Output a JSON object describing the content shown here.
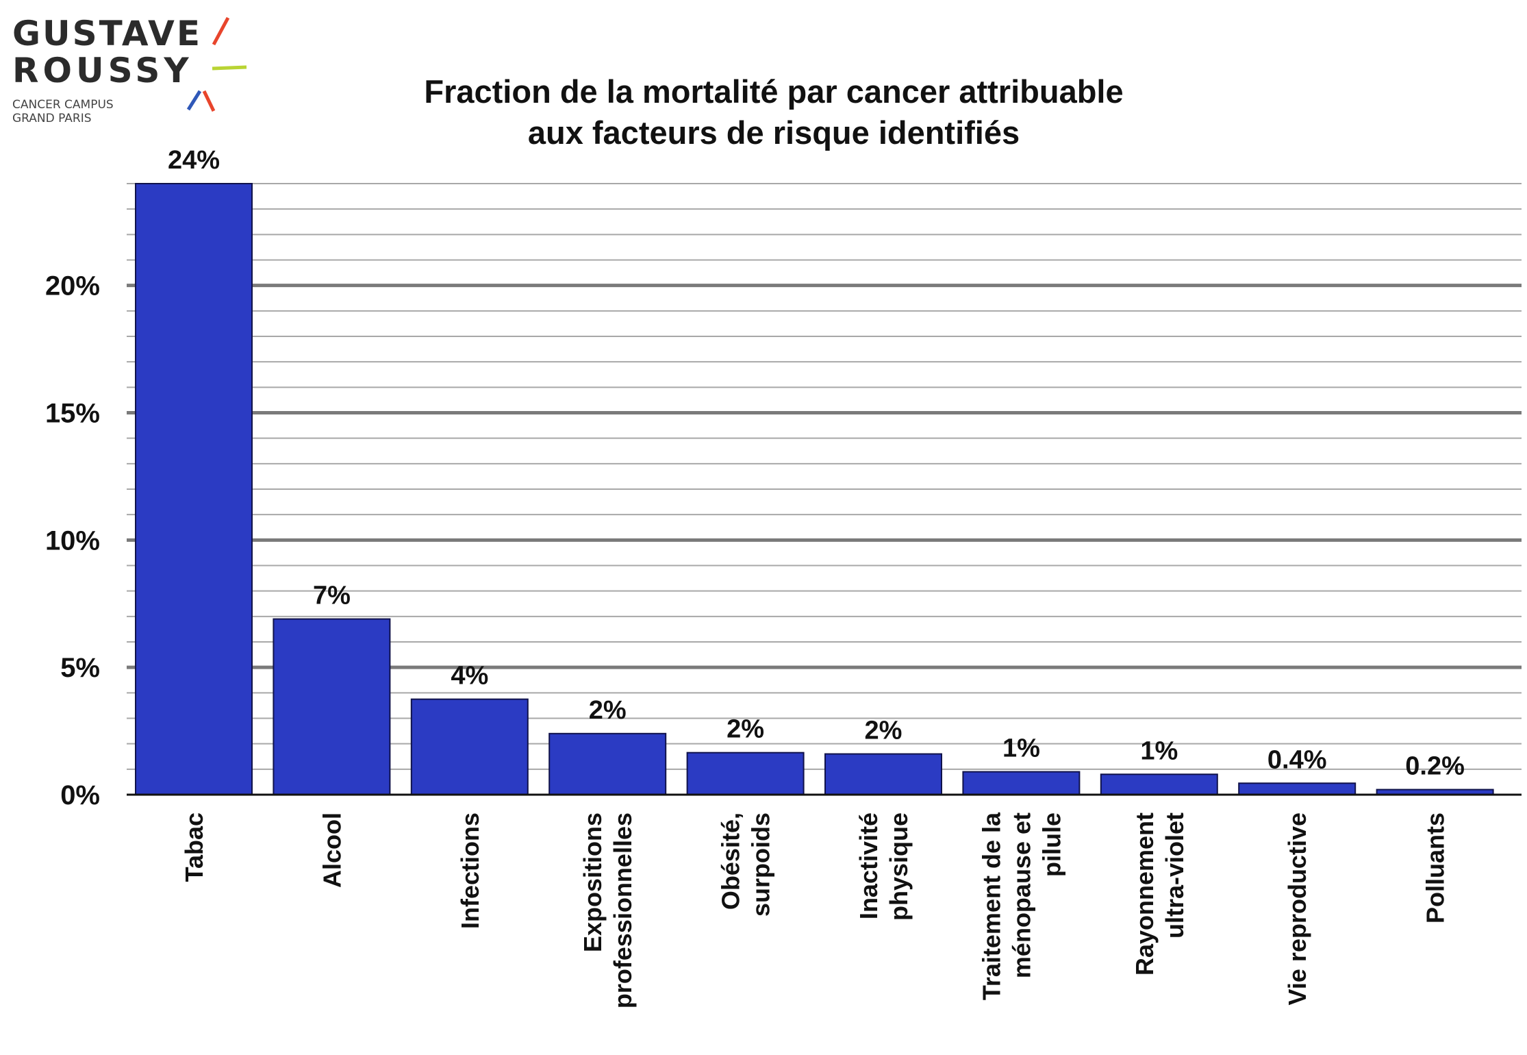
{
  "logo": {
    "line1": "GUSTAVE",
    "line2": "ROUSSY",
    "line3": "CANCER CAMPUS",
    "line4": "GRAND PARIS",
    "colors": {
      "red": "#e8452c",
      "lime": "#b9d434",
      "blue": "#2f58b8"
    }
  },
  "title": {
    "line1": "Fraction de la mortalité par cancer attribuable",
    "line2": "aux facteurs de risque identifiés"
  },
  "chart_data": {
    "type": "bar",
    "title": "Fraction de la mortalité par cancer attribuable aux facteurs de risque identifiés",
    "xlabel": "",
    "ylabel": "",
    "ylim": [
      0,
      24
    ],
    "yticks": [
      0,
      5,
      10,
      15,
      20
    ],
    "ytick_labels": [
      "0%",
      "5%",
      "10%",
      "15%",
      "20%"
    ],
    "grid": true,
    "minor_grid_step": 1,
    "bar_color": "#2b3bc3",
    "bars": [
      {
        "label_lines": [
          "Tabac"
        ],
        "value": 24,
        "value_label": "24%"
      },
      {
        "label_lines": [
          "Alcool"
        ],
        "value": 6.9,
        "value_label": "7%"
      },
      {
        "label_lines": [
          "Infections"
        ],
        "value": 3.75,
        "value_label": "4%"
      },
      {
        "label_lines": [
          "Expositions",
          "professionnelles"
        ],
        "value": 2.4,
        "value_label": "2%"
      },
      {
        "label_lines": [
          "Obésité,",
          "surpoids"
        ],
        "value": 1.65,
        "value_label": "2%"
      },
      {
        "label_lines": [
          "Inactivité",
          "physique"
        ],
        "value": 1.6,
        "value_label": "2%"
      },
      {
        "label_lines": [
          "Traitement de la",
          "ménopause et",
          "pilule"
        ],
        "value": 0.9,
        "value_label": "1%"
      },
      {
        "label_lines": [
          "Rayonnement",
          "ultra-violet"
        ],
        "value": 0.8,
        "value_label": "1%"
      },
      {
        "label_lines": [
          "Vie reproductive"
        ],
        "value": 0.45,
        "value_label": "0.4%"
      },
      {
        "label_lines": [
          "Polluants"
        ],
        "value": 0.2,
        "value_label": "0.2%"
      }
    ]
  }
}
